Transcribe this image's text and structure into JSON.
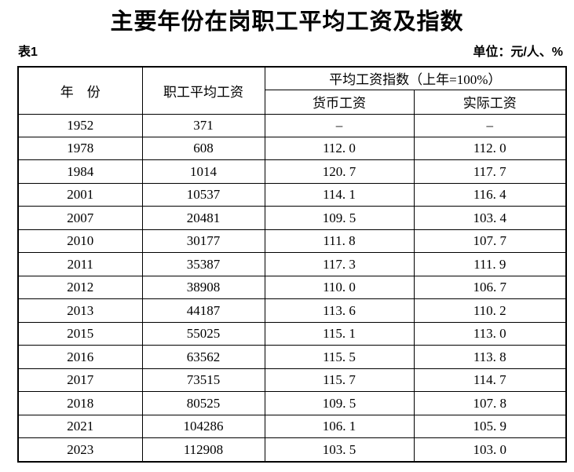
{
  "page": {
    "title": "主要年份在岗职工平均工资及指数",
    "table_label": "表1",
    "unit_label": "单位：元/人、%"
  },
  "colors": {
    "text": "#000000",
    "border": "#000000",
    "background": "#ffffff"
  },
  "table": {
    "headers": {
      "year": "年　份",
      "avg_wage": "职工平均工资",
      "index_group": "平均工资指数（上年=100%）",
      "money_wage": "货币工资",
      "real_wage": "实际工资"
    },
    "rows": [
      {
        "year": "1952",
        "avg_wage": "371",
        "money_index": "–",
        "real_index": "–"
      },
      {
        "year": "1978",
        "avg_wage": "608",
        "money_index": "112. 0",
        "real_index": "112. 0"
      },
      {
        "year": "1984",
        "avg_wage": "1014",
        "money_index": "120. 7",
        "real_index": "117. 7"
      },
      {
        "year": "2001",
        "avg_wage": "10537",
        "money_index": "114. 1",
        "real_index": "116. 4"
      },
      {
        "year": "2007",
        "avg_wage": "20481",
        "money_index": "109. 5",
        "real_index": "103. 4"
      },
      {
        "year": "2010",
        "avg_wage": "30177",
        "money_index": "111. 8",
        "real_index": "107. 7"
      },
      {
        "year": "2011",
        "avg_wage": "35387",
        "money_index": "117. 3",
        "real_index": "111. 9"
      },
      {
        "year": "2012",
        "avg_wage": "38908",
        "money_index": "110. 0",
        "real_index": "106. 7"
      },
      {
        "year": "2013",
        "avg_wage": "44187",
        "money_index": "113. 6",
        "real_index": "110. 2"
      },
      {
        "year": "2015",
        "avg_wage": "55025",
        "money_index": "115. 1",
        "real_index": "113. 0"
      },
      {
        "year": "2016",
        "avg_wage": "63562",
        "money_index": "115. 5",
        "real_index": "113. 8"
      },
      {
        "year": "2017",
        "avg_wage": "73515",
        "money_index": "115. 7",
        "real_index": "114. 7"
      },
      {
        "year": "2018",
        "avg_wage": "80525",
        "money_index": "109. 5",
        "real_index": "107. 8"
      },
      {
        "year": "2021",
        "avg_wage": "104286",
        "money_index": "106. 1",
        "real_index": "105. 9"
      },
      {
        "year": "2023",
        "avg_wage": "112908",
        "money_index": "103. 5",
        "real_index": "103. 0"
      }
    ]
  }
}
